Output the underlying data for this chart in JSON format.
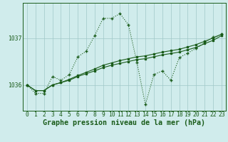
{
  "title": "Graphe pression niveau de la mer (hPa)",
  "hours": [
    0,
    1,
    2,
    3,
    4,
    5,
    6,
    7,
    8,
    9,
    10,
    11,
    12,
    13,
    14,
    15,
    16,
    17,
    18,
    19,
    20,
    21,
    22,
    23
  ],
  "line_variable_y": [
    1036.0,
    1035.82,
    1035.82,
    1036.18,
    1036.1,
    1036.22,
    1036.6,
    1036.72,
    1037.05,
    1037.42,
    1037.42,
    1037.52,
    1037.28,
    1036.48,
    1035.58,
    1036.22,
    1036.3,
    1036.1,
    1036.58,
    1036.68,
    1036.78,
    1036.9,
    1037.02,
    1037.08
  ],
  "line_trend1_y": [
    1036.0,
    1035.88,
    1035.88,
    1036.0,
    1036.05,
    1036.1,
    1036.18,
    1036.24,
    1036.3,
    1036.37,
    1036.42,
    1036.46,
    1036.5,
    1036.54,
    1036.56,
    1036.6,
    1036.64,
    1036.67,
    1036.7,
    1036.75,
    1036.8,
    1036.88,
    1036.95,
    1037.05
  ],
  "line_trend2_y": [
    1036.0,
    1035.88,
    1035.88,
    1036.0,
    1036.05,
    1036.12,
    1036.2,
    1036.27,
    1036.34,
    1036.42,
    1036.47,
    1036.52,
    1036.56,
    1036.6,
    1036.62,
    1036.66,
    1036.7,
    1036.73,
    1036.76,
    1036.81,
    1036.86,
    1036.93,
    1037.0,
    1037.08
  ],
  "ylim_min": 1035.45,
  "ylim_max": 1037.75,
  "yticks": [
    1036,
    1037
  ],
  "bg_color": "#d0ecec",
  "grid_color": "#a0c8c8",
  "line_color": "#1a5c1a",
  "title_fontsize": 7.2,
  "tick_fontsize": 5.8
}
